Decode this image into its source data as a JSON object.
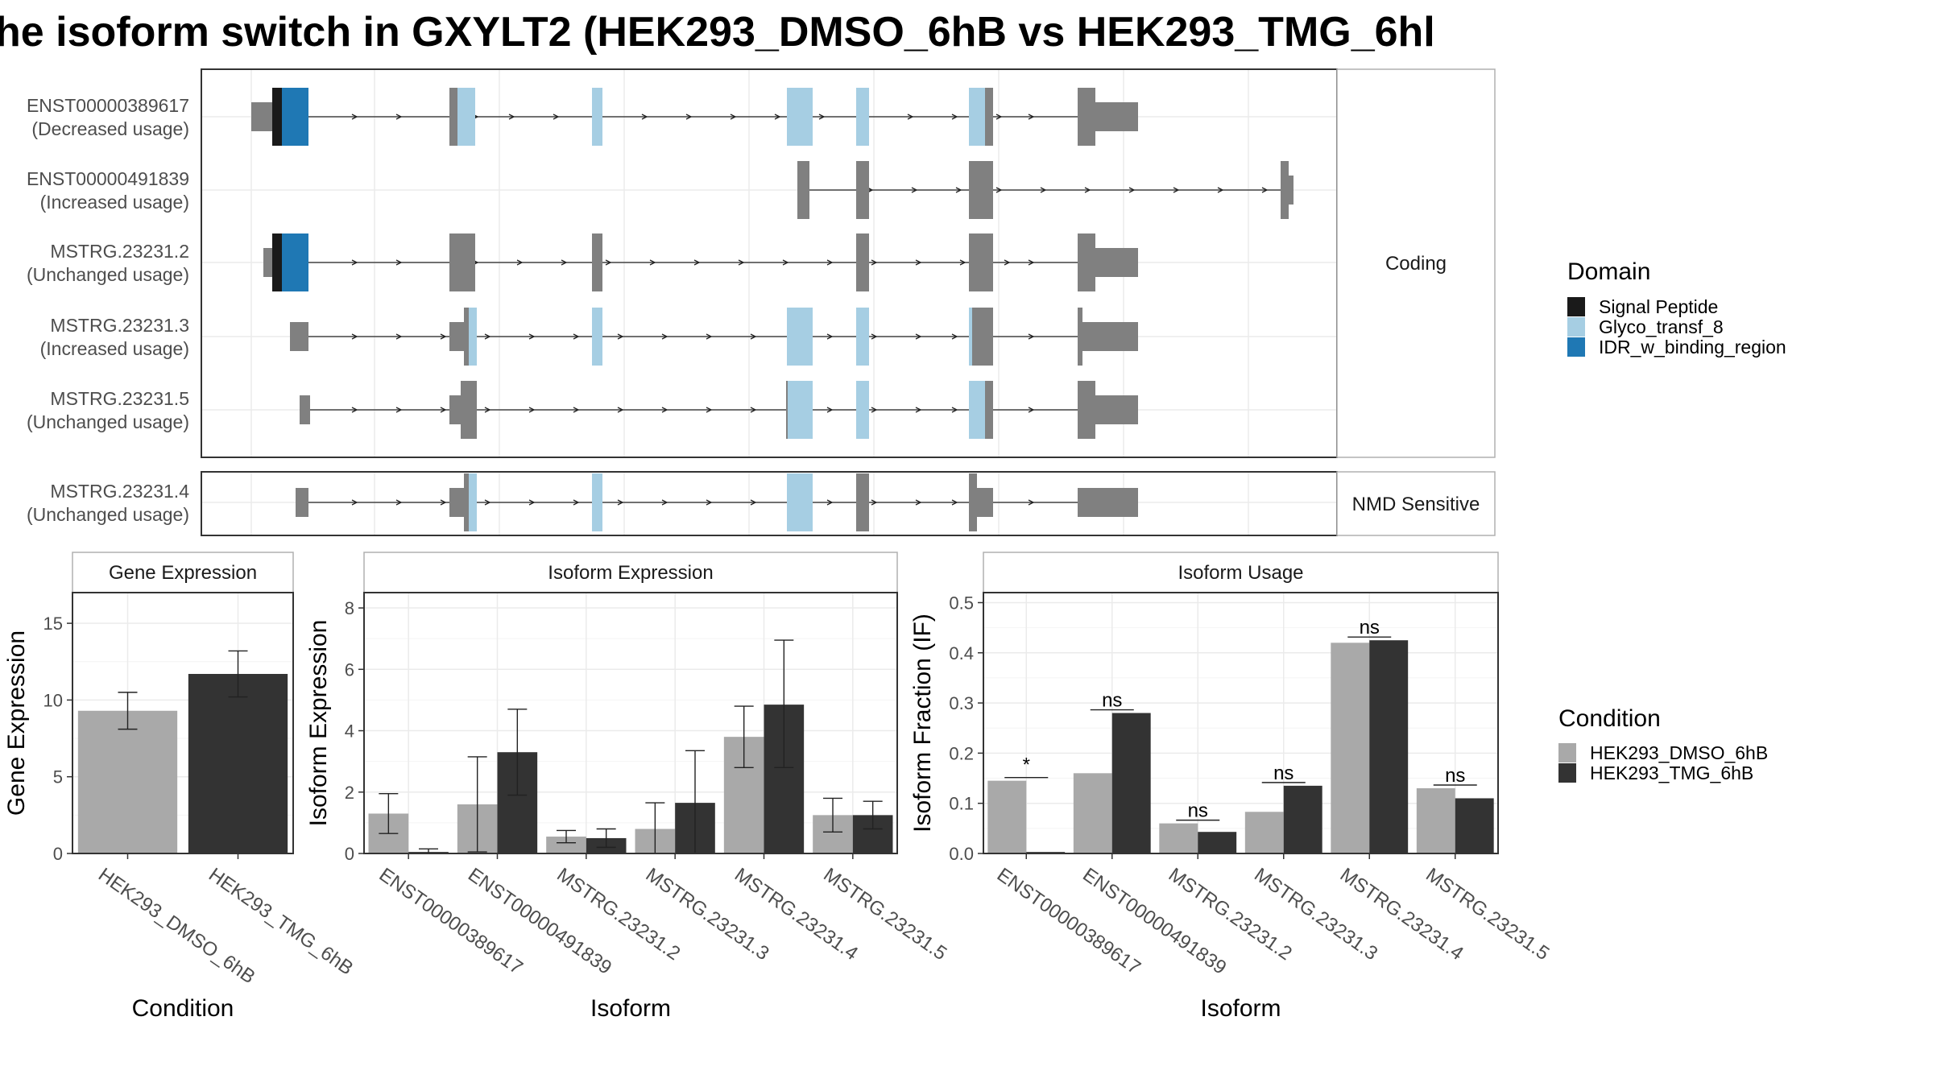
{
  "title": "he isoform switch in GXYLT2 (HEK293_DMSO_6hB vs HEK293_TMG_6hl",
  "colors": {
    "signal_peptide": "#1a1a1a",
    "glyco": "#a6cee3",
    "idr": "#1f78b4",
    "exon": "#808080",
    "dmso": "#a9a9a9",
    "tmg": "#333333",
    "grid": "#ebebeb",
    "border": "#333333",
    "strip_border": "#b0b0b0"
  },
  "transcripts": {
    "coding_strip": "Coding",
    "nmd_strip": "NMD Sensitive",
    "coding": [
      {
        "id": "ENST00000389617",
        "usage": "(Decreased usage)"
      },
      {
        "id": "ENST00000491839",
        "usage": "(Increased usage)"
      },
      {
        "id": "MSTRG.23231.2",
        "usage": "(Unchanged usage)"
      },
      {
        "id": "MSTRG.23231.3",
        "usage": "(Increased usage)"
      },
      {
        "id": "MSTRG.23231.5",
        "usage": "(Unchanged usage)"
      }
    ],
    "nmd": [
      {
        "id": "MSTRG.23231.4",
        "usage": "(Unchanged usage)"
      }
    ]
  },
  "domain_legend": {
    "title": "Domain",
    "items": [
      {
        "label": "Signal Peptide",
        "color": "#1a1a1a"
      },
      {
        "label": "Glyco_transf_8",
        "color": "#a6cee3"
      },
      {
        "label": "IDR_w_binding_region",
        "color": "#1f78b4"
      }
    ]
  },
  "condition_legend": {
    "title": "Condition",
    "items": [
      {
        "label": "HEK293_DMSO_6hB",
        "color": "#a9a9a9"
      },
      {
        "label": "HEK293_TMG_6hB",
        "color": "#333333"
      }
    ]
  },
  "chart_data": [
    {
      "type": "bar",
      "title": "Gene Expression",
      "xlabel": "Condition",
      "ylabel": "Gene Expression",
      "ylim": [
        0,
        17
      ],
      "yticks": [
        0,
        5,
        10,
        15
      ],
      "categories": [
        "HEK293_DMSO_6hB",
        "HEK293_TMG_6hB"
      ],
      "values": [
        9.3,
        11.7
      ],
      "err_low": [
        8.1,
        10.2
      ],
      "err_high": [
        10.5,
        13.2
      ]
    },
    {
      "type": "bar",
      "title": "Isoform Expression",
      "xlabel": "Isoform",
      "ylabel": "Isoform Expression",
      "ylim": [
        0,
        8.5
      ],
      "yticks": [
        0,
        2,
        4,
        6,
        8
      ],
      "categories": [
        "ENST00000389617",
        "ENST00000491839",
        "MSTRG.23231.2",
        "MSTRG.23231.3",
        "MSTRG.23231.4",
        "MSTRG.23231.5"
      ],
      "series": [
        {
          "name": "HEK293_DMSO_6hB",
          "values": [
            1.3,
            1.6,
            0.55,
            0.8,
            3.8,
            1.25
          ],
          "err_low": [
            0.65,
            0.05,
            0.35,
            0.0,
            2.8,
            0.7
          ],
          "err_high": [
            1.95,
            3.15,
            0.75,
            1.65,
            4.8,
            1.8
          ]
        },
        {
          "name": "HEK293_TMG_6hB",
          "values": [
            0.05,
            3.3,
            0.5,
            1.65,
            4.85,
            1.25
          ],
          "err_low": [
            0.0,
            1.9,
            0.2,
            0.0,
            2.8,
            0.8
          ],
          "err_high": [
            0.15,
            4.7,
            0.8,
            3.35,
            6.95,
            1.7
          ]
        }
      ]
    },
    {
      "type": "bar",
      "title": "Isoform Usage",
      "xlabel": "Isoform",
      "ylabel": "Isoform Fraction (IF)",
      "ylim": [
        0,
        0.52
      ],
      "yticks": [
        0.0,
        0.1,
        0.2,
        0.3,
        0.4,
        0.5
      ],
      "categories": [
        "ENST00000389617",
        "ENST00000491839",
        "MSTRG.23231.2",
        "MSTRG.23231.3",
        "MSTRG.23231.4",
        "MSTRG.23231.5"
      ],
      "series": [
        {
          "name": "HEK293_DMSO_6hB",
          "values": [
            0.145,
            0.16,
            0.06,
            0.083,
            0.42,
            0.13
          ]
        },
        {
          "name": "HEK293_TMG_6hB",
          "values": [
            0.003,
            0.28,
            0.043,
            0.135,
            0.425,
            0.11
          ]
        }
      ],
      "significance": [
        "*",
        "ns",
        "ns",
        "ns",
        "ns",
        "ns"
      ]
    }
  ]
}
